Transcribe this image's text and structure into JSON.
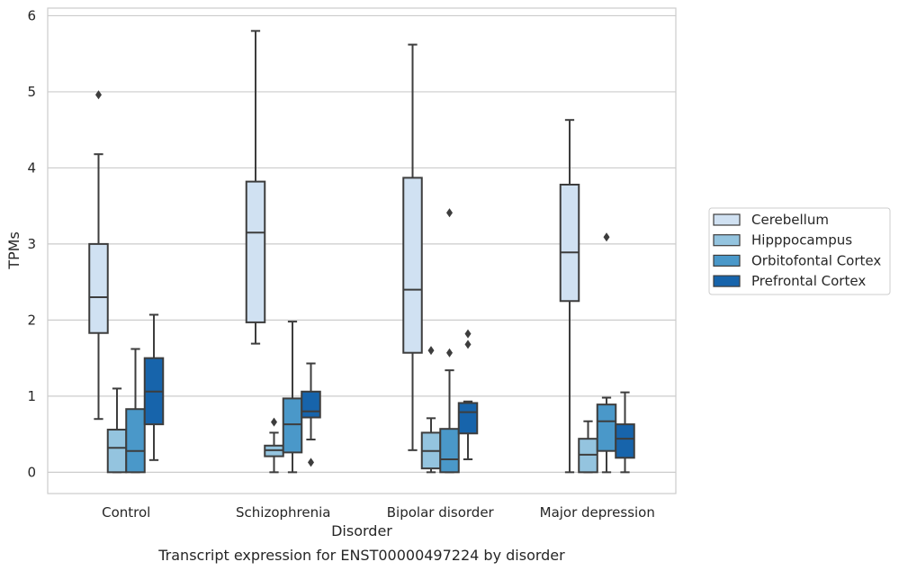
{
  "chart_data": {
    "type": "box",
    "caption": "Transcript expression for ENST00000497224 by disorder",
    "xlabel": "Disorder",
    "ylabel": "TPMs",
    "ylim": [
      -0.28,
      6.1
    ],
    "yticks": [
      0,
      1,
      2,
      3,
      4,
      5,
      6
    ],
    "grid": true,
    "legend_position": "right",
    "categories": [
      "Control",
      "Schizophrenia",
      "Bipolar disorder",
      "Major depression"
    ],
    "series": [
      {
        "name": "Cerebellum",
        "color": "#d0e1f2",
        "boxes": [
          {
            "whislo": 0.7,
            "q1": 1.83,
            "med": 2.3,
            "q3": 3.0,
            "whishi": 4.18,
            "fliers": [
              4.96
            ]
          },
          {
            "whislo": 1.69,
            "q1": 1.97,
            "med": 3.15,
            "q3": 3.82,
            "whishi": 5.8,
            "fliers": []
          },
          {
            "whislo": 0.29,
            "q1": 1.57,
            "med": 2.4,
            "q3": 3.87,
            "whishi": 5.62,
            "fliers": []
          },
          {
            "whislo": 0.0,
            "q1": 2.25,
            "med": 2.89,
            "q3": 3.78,
            "whishi": 4.63,
            "fliers": []
          }
        ]
      },
      {
        "name": "Hipppocampus",
        "color": "#94c4df",
        "boxes": [
          {
            "whislo": 0.0,
            "q1": 0.0,
            "med": 0.32,
            "q3": 0.56,
            "whishi": 1.1,
            "fliers": []
          },
          {
            "whislo": 0.0,
            "q1": 0.21,
            "med": 0.29,
            "q3": 0.35,
            "whishi": 0.52,
            "fliers": [
              0.66
            ]
          },
          {
            "whislo": 0.0,
            "q1": 0.05,
            "med": 0.28,
            "q3": 0.52,
            "whishi": 0.71,
            "fliers": [
              1.6
            ]
          },
          {
            "whislo": 0.0,
            "q1": 0.0,
            "med": 0.23,
            "q3": 0.44,
            "whishi": 0.67,
            "fliers": []
          }
        ]
      },
      {
        "name": "Orbitofontal Cortex",
        "color": "#4a98c9",
        "boxes": [
          {
            "whislo": 0.0,
            "q1": 0.0,
            "med": 0.28,
            "q3": 0.83,
            "whishi": 1.62,
            "fliers": []
          },
          {
            "whislo": 0.0,
            "q1": 0.26,
            "med": 0.63,
            "q3": 0.97,
            "whishi": 1.98,
            "fliers": []
          },
          {
            "whislo": 0.0,
            "q1": 0.0,
            "med": 0.17,
            "q3": 0.57,
            "whishi": 1.34,
            "fliers": [
              1.57,
              3.41
            ]
          },
          {
            "whislo": 0.0,
            "q1": 0.28,
            "med": 0.67,
            "q3": 0.89,
            "whishi": 0.98,
            "fliers": [
              3.09
            ]
          }
        ]
      },
      {
        "name": "Prefrontal Cortex",
        "color": "#1764ab",
        "boxes": [
          {
            "whislo": 0.16,
            "q1": 0.63,
            "med": 1.06,
            "q3": 1.5,
            "whishi": 2.07,
            "fliers": []
          },
          {
            "whislo": 0.43,
            "q1": 0.72,
            "med": 0.8,
            "q3": 1.06,
            "whishi": 1.43,
            "fliers": [
              0.13
            ]
          },
          {
            "whislo": 0.17,
            "q1": 0.51,
            "med": 0.79,
            "q3": 0.91,
            "whishi": 0.93,
            "fliers": [
              1.68,
              1.82
            ]
          },
          {
            "whislo": 0.0,
            "q1": 0.19,
            "med": 0.44,
            "q3": 0.63,
            "whishi": 1.05,
            "fliers": []
          }
        ]
      }
    ]
  }
}
